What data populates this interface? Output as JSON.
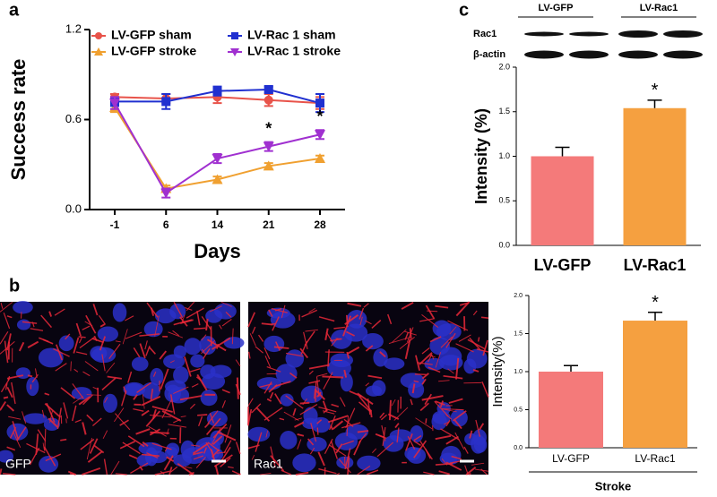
{
  "panel_labels": [
    "a",
    "b",
    "c"
  ],
  "blot": {
    "groups": [
      "LV-GFP",
      "LV-Rac1"
    ],
    "rows": [
      "Rac1",
      "β-actin"
    ]
  },
  "images": [
    {
      "label": "GFP"
    },
    {
      "label": "Rac1"
    }
  ],
  "chart_data": [
    {
      "type": "line",
      "ylabel": "Success rate",
      "xlabel": "Days",
      "categories": [
        "-1",
        "6",
        "14",
        "21",
        "28"
      ],
      "ylim": [
        0,
        1.2
      ],
      "yticks": [
        {
          "value": 0,
          "label": "0.0"
        },
        0.6,
        1.2
      ],
      "series": [
        {
          "name": "LV-GFP sham",
          "color": "#e8534a",
          "marker": "circle",
          "values": [
            0.75,
            0.74,
            0.75,
            0.73,
            0.71
          ],
          "errors": [
            0.02,
            0.03,
            0.04,
            0.04,
            0.04
          ]
        },
        {
          "name": "LV-GFP stroke",
          "color": "#f0a030",
          "marker": "triangle-up",
          "values": [
            0.68,
            0.14,
            0.2,
            0.29,
            0.34
          ],
          "errors": [
            0.03,
            0.02,
            0.02,
            0.02,
            0.02
          ]
        },
        {
          "name": "LV-Rac 1 sham",
          "color": "#2030d0",
          "marker": "square",
          "values": [
            0.72,
            0.72,
            0.79,
            0.8,
            0.71
          ],
          "errors": [
            0.03,
            0.05,
            0.03,
            0.02,
            0.06
          ]
        },
        {
          "name": "LV-Rac 1 stroke",
          "color": "#a030d0",
          "marker": "triangle-down",
          "values": [
            0.71,
            0.11,
            0.34,
            0.42,
            0.5
          ],
          "errors": [
            0.04,
            0.03,
            0.03,
            0.03,
            0.03
          ]
        }
      ],
      "annotations": [
        {
          "text": "*",
          "series": "LV-Rac 1 stroke",
          "category": "21"
        },
        {
          "text": "*",
          "series": "LV-Rac 1 stroke",
          "category": "28"
        }
      ]
    },
    {
      "type": "bar",
      "ylabel": "Intensity (%)",
      "categories": [
        "LV-GFP",
        "LV-Rac1"
      ],
      "values": [
        1.0,
        1.54
      ],
      "errors": [
        0.1,
        0.09
      ],
      "colors": [
        "#f47a7a",
        "#f5a040"
      ],
      "ylim": [
        0,
        2.0
      ],
      "yticks": [
        {
          "value": 0,
          "label": "0.0"
        },
        0.5,
        {
          "value": 1,
          "label": "1.0"
        },
        1.5,
        {
          "value": 2,
          "label": "2.0"
        }
      ],
      "annotations": [
        {
          "text": "*",
          "category": "LV-Rac1"
        }
      ]
    },
    {
      "type": "bar",
      "ylabel": "Intensity(%)",
      "xlabel": "Stroke",
      "categories": [
        "LV-GFP",
        "LV-Rac1"
      ],
      "values": [
        1.0,
        1.67
      ],
      "errors": [
        0.08,
        0.11
      ],
      "colors": [
        "#f47a7a",
        "#f5a040"
      ],
      "ylim": [
        0,
        2.0
      ],
      "yticks": [
        {
          "value": 0,
          "label": "0.0"
        },
        0.5,
        {
          "value": 1,
          "label": "1.0"
        },
        1.5,
        {
          "value": 2,
          "label": "2.0"
        }
      ],
      "annotations": [
        {
          "text": "*",
          "category": "LV-Rac1"
        }
      ]
    }
  ]
}
